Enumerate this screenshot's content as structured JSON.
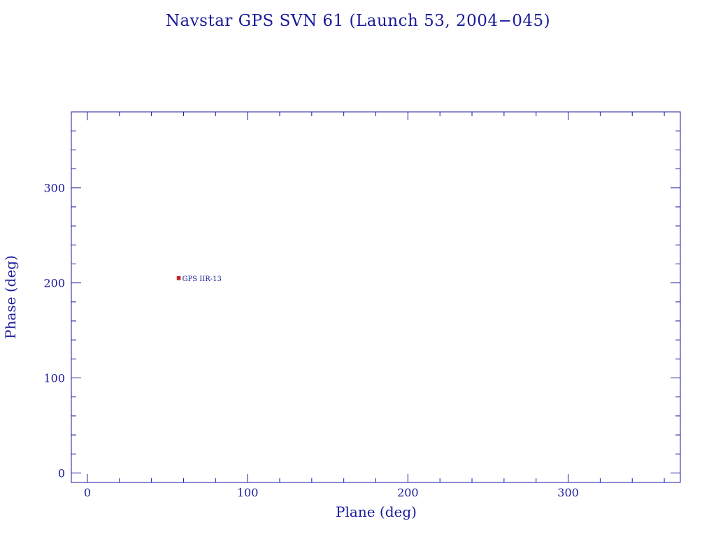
{
  "chart_data": {
    "type": "scatter",
    "title": "Navstar GPS SVN 61 (Launch 53, 2004−045)",
    "xlabel": "Plane (deg)",
    "ylabel": "Phase (deg)",
    "xlim": [
      -10,
      370
    ],
    "ylim": [
      -10,
      380
    ],
    "xticks": [
      0,
      100,
      200,
      300
    ],
    "yticks": [
      0,
      100,
      200,
      300
    ],
    "xtick_labels": [
      "0",
      "100",
      "200",
      "300"
    ],
    "ytick_labels": [
      "0",
      "100",
      "200",
      "300"
    ],
    "grid": false,
    "series": [
      {
        "points": [
          {
            "x": 57,
            "y": 205,
            "label": "GPS IIR-13"
          }
        ]
      }
    ]
  },
  "colors": {
    "foreground": "#1a1a9c",
    "marker": "#d62020",
    "background": "#ffffff"
  }
}
